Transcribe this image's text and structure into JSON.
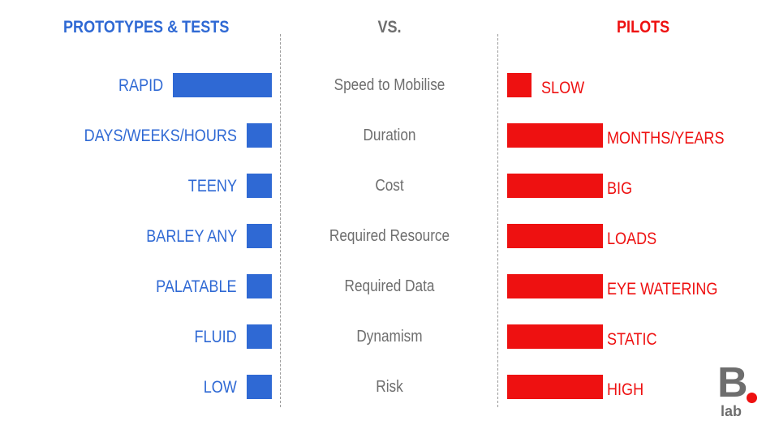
{
  "header": {
    "left": "PROTOTYPES & TESTS",
    "middle": "VS.",
    "right": "PILOTS"
  },
  "colors": {
    "prototypes": "#2f69d4",
    "pilots": "#ee1111",
    "neutral": "#6e6e6e"
  },
  "rows": [
    {
      "criterion": "Speed to Mobilise",
      "prototype_label": "RAPID",
      "prototype_level": 1.0,
      "pilot_label": "SLOW",
      "pilot_level": 0.25
    },
    {
      "criterion": "Duration",
      "prototype_label": "DAYS/WEEKS/HOURS",
      "prototype_level": 0.25,
      "pilot_label": "MONTHS/YEARS",
      "pilot_level": 1.0
    },
    {
      "criterion": "Cost",
      "prototype_label": "TEENY",
      "prototype_level": 0.25,
      "pilot_label": "BIG",
      "pilot_level": 1.0
    },
    {
      "criterion": "Required Resource",
      "prototype_label": "BARLEY ANY",
      "prototype_level": 0.25,
      "pilot_label": "LOADS",
      "pilot_level": 1.0
    },
    {
      "criterion": "Required Data",
      "prototype_label": "PALATABLE",
      "prototype_level": 0.25,
      "pilot_label": "EYE WATERING",
      "pilot_level": 1.0
    },
    {
      "criterion": "Dynamism",
      "prototype_label": "FLUID",
      "prototype_level": 0.25,
      "pilot_label": "STATIC",
      "pilot_level": 1.0
    },
    {
      "criterion": "Risk",
      "prototype_label": "LOW",
      "prototype_level": 0.25,
      "pilot_label": "HIGH",
      "pilot_level": 1.0
    }
  ],
  "logo": {
    "mark": "B",
    "text": "lab"
  }
}
